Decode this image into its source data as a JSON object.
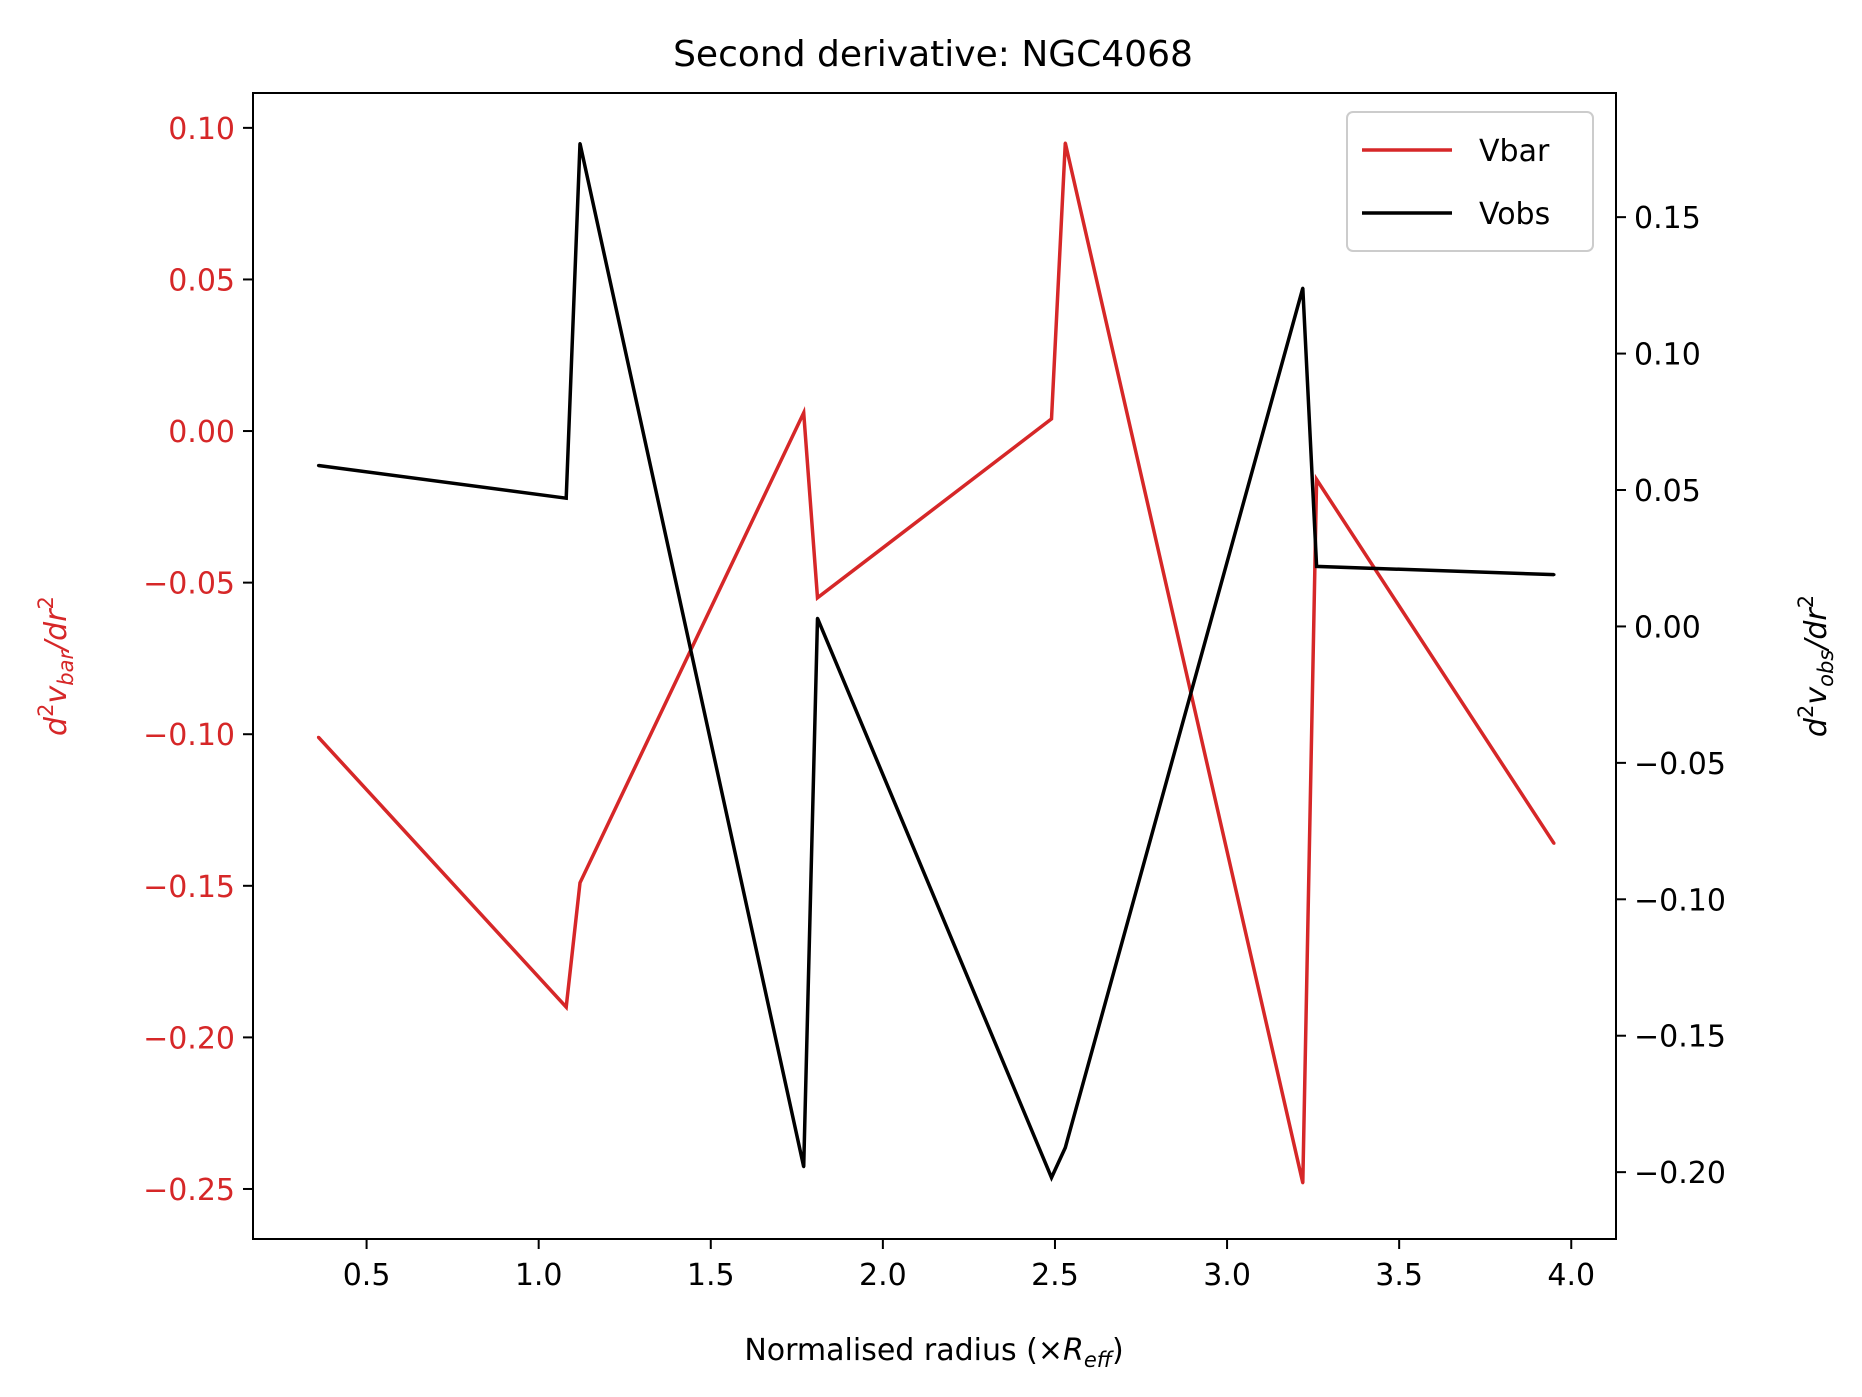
{
  "chart_data": {
    "type": "line",
    "title": "Second derivative: NGC4068",
    "xlabel": "Normalised radius (×R_eff)",
    "xlabel_parts": {
      "prefix": "Normalised radius (×",
      "var": "R",
      "sub": "eff",
      "suffix": ")"
    },
    "ylabel_left": "d²v_bar/dr²",
    "ylabel_right": "d²v_obs/dr²",
    "xlim": [
      0.17,
      4.13
    ],
    "ylim_left": [
      -0.2665,
      0.1115
    ],
    "ylim_right": [
      -0.2245,
      0.1955
    ],
    "xticks": [
      0.5,
      1.0,
      1.5,
      2.0,
      2.5,
      3.0,
      3.5,
      4.0
    ],
    "xtick_labels": [
      "0.5",
      "1.0",
      "1.5",
      "2.0",
      "2.5",
      "3.0",
      "3.5",
      "4.0"
    ],
    "yticks_left": [
      0.1,
      0.05,
      0.0,
      -0.05,
      -0.1,
      -0.15,
      -0.2,
      -0.25
    ],
    "ytick_labels_left": [
      "0.10",
      "0.05",
      "0.00",
      "−0.05",
      "−0.10",
      "−0.15",
      "−0.20",
      "−0.25"
    ],
    "yticks_right": [
      0.15,
      0.1,
      0.05,
      0.0,
      -0.05,
      -0.1,
      -0.15,
      -0.2
    ],
    "ytick_labels_right": [
      "0.15",
      "0.10",
      "0.05",
      "0.00",
      "−0.05",
      "−0.10",
      "−0.15",
      "−0.20"
    ],
    "legend_position": "top-right",
    "grid": false,
    "colors": {
      "vbar": "#d62728",
      "vobs": "#000000",
      "left_axis_text": "#d62728"
    },
    "series": [
      {
        "name": "Vbar",
        "axis": "left",
        "x": [
          0.36,
          1.08,
          1.12,
          1.77,
          1.81,
          2.49,
          2.53,
          3.22,
          3.26,
          3.95
        ],
        "y": [
          -0.101,
          -0.19,
          -0.149,
          0.006,
          -0.055,
          0.004,
          0.095,
          -0.248,
          -0.016,
          -0.136
        ]
      },
      {
        "name": "Vobs",
        "axis": "right",
        "x": [
          0.36,
          1.08,
          1.12,
          1.77,
          1.81,
          2.49,
          2.53,
          3.22,
          3.26,
          3.95
        ],
        "y": [
          0.059,
          0.047,
          0.177,
          -0.198,
          0.003,
          -0.202,
          -0.191,
          0.124,
          0.022,
          0.019
        ]
      }
    ]
  }
}
